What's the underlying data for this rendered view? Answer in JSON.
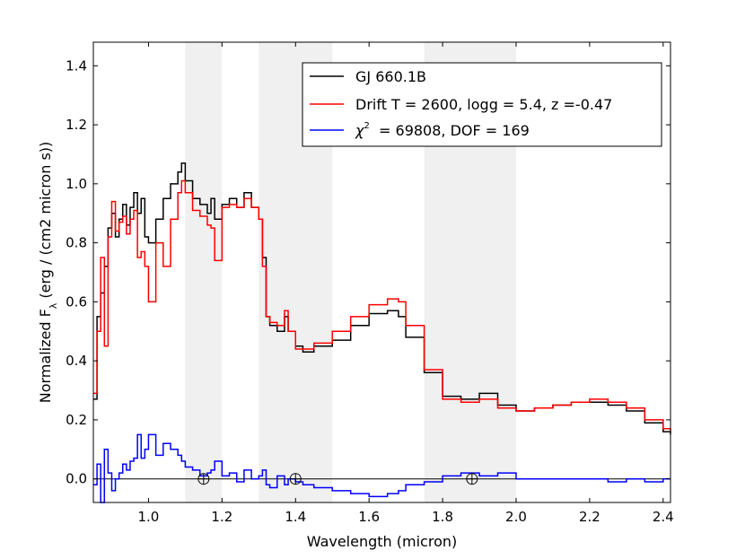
{
  "chart_data": {
    "type": "line",
    "xlabel": "Wavelength (micron)",
    "ylabel_prefix": "Normalized F",
    "ylabel_sub": "λ",
    "ylabel_suffix": " (erg / (cm2 micron s))",
    "xlim": [
      0.85,
      2.42
    ],
    "ylim": [
      -0.08,
      1.48
    ],
    "xticks": [
      1.0,
      1.2,
      1.4,
      1.6,
      1.8,
      2.0,
      2.2,
      2.4
    ],
    "xtick_labels": [
      "1.0",
      "1.2",
      "1.4",
      "1.6",
      "1.8",
      "2.0",
      "2.2",
      "2.4"
    ],
    "yticks": [
      0.0,
      0.2,
      0.4,
      0.6,
      0.8,
      1.0,
      1.2,
      1.4
    ],
    "ytick_labels": [
      "0.0",
      "0.2",
      "0.4",
      "0.6",
      "0.8",
      "1.0",
      "1.2",
      "1.4"
    ],
    "shaded_bands": [
      [
        1.1,
        1.2
      ],
      [
        1.3,
        1.5
      ],
      [
        1.75,
        2.0
      ]
    ],
    "telluric_markers": [
      1.15,
      1.4,
      1.88
    ],
    "legend": {
      "placement": "top-right",
      "entries": [
        {
          "label": "GJ 660.1B",
          "color": "#000000"
        },
        {
          "label": "Drift T = 2600, logg = 5.4, z =-0.47",
          "color": "#ff0000"
        },
        {
          "label_math": "χ",
          "label_sup": "2",
          "label_rest": "  = 69808, DOF = 169",
          "color": "#0000ff"
        }
      ]
    },
    "series": [
      {
        "name": "GJ 660.1B",
        "color": "#000000",
        "x": [
          0.85,
          0.86,
          0.87,
          0.88,
          0.89,
          0.9,
          0.91,
          0.92,
          0.93,
          0.94,
          0.95,
          0.96,
          0.97,
          0.98,
          0.99,
          1.0,
          1.02,
          1.04,
          1.06,
          1.08,
          1.09,
          1.1,
          1.12,
          1.14,
          1.16,
          1.17,
          1.18,
          1.2,
          1.22,
          1.24,
          1.26,
          1.28,
          1.3,
          1.31,
          1.32,
          1.33,
          1.35,
          1.37,
          1.38,
          1.4,
          1.42,
          1.45,
          1.5,
          1.55,
          1.6,
          1.65,
          1.68,
          1.7,
          1.75,
          1.8,
          1.85,
          1.9,
          1.95,
          2.0,
          2.05,
          2.1,
          2.15,
          2.2,
          2.25,
          2.3,
          2.35,
          2.4,
          2.42
        ],
        "y": [
          0.27,
          0.55,
          0.63,
          0.72,
          0.85,
          0.9,
          0.82,
          0.88,
          0.93,
          0.86,
          0.92,
          0.97,
          0.9,
          0.95,
          0.82,
          0.8,
          0.88,
          0.95,
          1.0,
          1.04,
          1.07,
          1.01,
          0.95,
          0.93,
          0.9,
          0.95,
          0.88,
          0.93,
          0.95,
          0.92,
          0.97,
          0.92,
          0.88,
          0.75,
          0.55,
          0.52,
          0.5,
          0.55,
          0.5,
          0.45,
          0.43,
          0.45,
          0.47,
          0.52,
          0.56,
          0.57,
          0.55,
          0.48,
          0.36,
          0.28,
          0.27,
          0.29,
          0.25,
          0.23,
          0.24,
          0.25,
          0.26,
          0.26,
          0.25,
          0.23,
          0.19,
          0.16,
          0.15
        ]
      },
      {
        "name": "Drift T = 2600, logg = 5.4, z =-0.47",
        "color": "#ff0000",
        "x": [
          0.85,
          0.86,
          0.87,
          0.88,
          0.89,
          0.9,
          0.91,
          0.92,
          0.93,
          0.94,
          0.95,
          0.96,
          0.97,
          0.98,
          0.99,
          1.0,
          1.02,
          1.04,
          1.06,
          1.08,
          1.09,
          1.1,
          1.12,
          1.14,
          1.16,
          1.17,
          1.18,
          1.2,
          1.22,
          1.24,
          1.26,
          1.28,
          1.3,
          1.31,
          1.32,
          1.33,
          1.35,
          1.37,
          1.38,
          1.4,
          1.42,
          1.45,
          1.5,
          1.55,
          1.6,
          1.65,
          1.68,
          1.7,
          1.75,
          1.8,
          1.85,
          1.9,
          1.95,
          2.0,
          2.05,
          2.1,
          2.15,
          2.2,
          2.25,
          2.3,
          2.35,
          2.4,
          2.42
        ],
        "y": [
          0.29,
          0.5,
          0.75,
          0.45,
          0.82,
          0.94,
          0.84,
          0.87,
          0.89,
          0.83,
          0.88,
          0.91,
          0.75,
          0.77,
          0.72,
          0.6,
          0.8,
          0.72,
          0.88,
          0.97,
          1.01,
          0.97,
          0.91,
          0.89,
          0.86,
          0.85,
          0.74,
          0.92,
          0.93,
          0.92,
          0.95,
          0.92,
          0.88,
          0.72,
          0.55,
          0.53,
          0.52,
          0.57,
          0.5,
          0.44,
          0.44,
          0.46,
          0.5,
          0.55,
          0.59,
          0.61,
          0.6,
          0.52,
          0.37,
          0.27,
          0.26,
          0.27,
          0.24,
          0.23,
          0.24,
          0.25,
          0.26,
          0.27,
          0.26,
          0.24,
          0.2,
          0.17,
          0.16
        ]
      },
      {
        "name": "χ2  = 69808, DOF = 169",
        "color": "#0000ff",
        "x": [
          0.85,
          0.86,
          0.87,
          0.88,
          0.89,
          0.9,
          0.91,
          0.92,
          0.93,
          0.94,
          0.95,
          0.96,
          0.97,
          0.98,
          0.99,
          1.0,
          1.02,
          1.04,
          1.06,
          1.08,
          1.09,
          1.1,
          1.12,
          1.14,
          1.16,
          1.17,
          1.18,
          1.2,
          1.22,
          1.24,
          1.26,
          1.28,
          1.3,
          1.31,
          1.32,
          1.33,
          1.35,
          1.37,
          1.38,
          1.4,
          1.42,
          1.45,
          1.5,
          1.55,
          1.6,
          1.65,
          1.68,
          1.7,
          1.75,
          1.8,
          1.85,
          1.9,
          1.95,
          2.0,
          2.05,
          2.1,
          2.15,
          2.2,
          2.25,
          2.3,
          2.35,
          2.4,
          2.42
        ],
        "y": [
          -0.02,
          0.05,
          -0.08,
          0.1,
          0.02,
          -0.04,
          0.0,
          0.02,
          0.05,
          0.03,
          0.06,
          0.07,
          0.15,
          0.07,
          0.1,
          0.15,
          0.08,
          0.12,
          0.1,
          0.08,
          0.06,
          0.04,
          0.03,
          0.01,
          0.02,
          0.03,
          0.06,
          0.01,
          0.02,
          -0.01,
          0.03,
          0.0,
          0.01,
          0.03,
          -0.02,
          -0.03,
          0.01,
          -0.02,
          0.0,
          -0.01,
          -0.02,
          -0.03,
          -0.04,
          -0.05,
          -0.06,
          -0.05,
          -0.04,
          -0.02,
          -0.01,
          0.01,
          0.02,
          0.01,
          0.02,
          0.0,
          0.0,
          0.0,
          0.0,
          0.0,
          -0.01,
          0.0,
          -0.01,
          0.0,
          0.0
        ]
      }
    ]
  }
}
